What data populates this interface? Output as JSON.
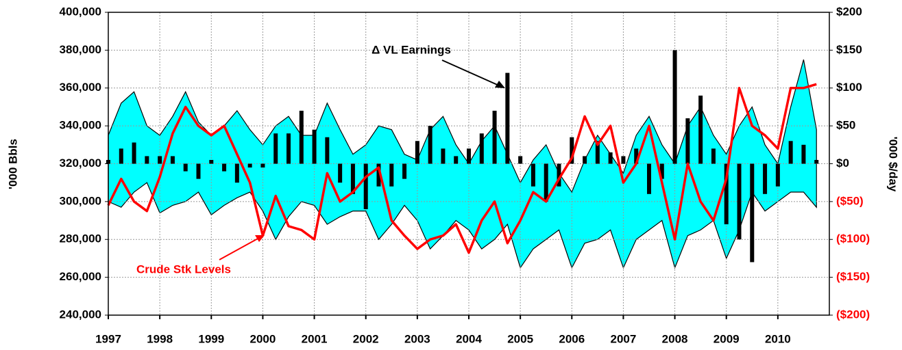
{
  "chart_data": {
    "type": "combo",
    "x": [
      1997,
      1997.25,
      1997.5,
      1997.75,
      1998,
      1998.25,
      1998.5,
      1998.75,
      1999,
      1999.25,
      1999.5,
      1999.75,
      2000,
      2000.25,
      2000.5,
      2000.75,
      2001,
      2001.25,
      2001.5,
      2001.75,
      2002,
      2002.25,
      2002.5,
      2002.75,
      2003,
      2003.25,
      2003.5,
      2003.75,
      2004,
      2004.25,
      2004.5,
      2004.75,
      2005,
      2005.25,
      2005.5,
      2005.75,
      2006,
      2006.25,
      2006.5,
      2006.75,
      2007,
      2007.25,
      2007.5,
      2007.75,
      2008,
      2008.25,
      2008.5,
      2008.75,
      2009,
      2009.25,
      2009.5,
      2009.75,
      2010,
      2010.25,
      2010.5,
      2010.75
    ],
    "band": {
      "color": "#00ffff",
      "upper": [
        335000,
        352000,
        358000,
        340000,
        335000,
        345000,
        358000,
        342000,
        335000,
        340000,
        348000,
        338000,
        330000,
        340000,
        345000,
        335000,
        335000,
        352000,
        338000,
        325000,
        330000,
        340000,
        338000,
        325000,
        322000,
        338000,
        345000,
        330000,
        320000,
        332000,
        340000,
        325000,
        310000,
        322000,
        330000,
        315000,
        305000,
        322000,
        335000,
        325000,
        315000,
        335000,
        345000,
        330000,
        320000,
        340000,
        350000,
        335000,
        325000,
        340000,
        350000,
        330000,
        320000,
        350000,
        375000,
        338000
      ],
      "lower": [
        300000,
        297000,
        305000,
        310000,
        294000,
        298000,
        300000,
        305000,
        293000,
        298000,
        302000,
        305000,
        295000,
        280000,
        292000,
        300000,
        298000,
        288000,
        292000,
        295000,
        295000,
        280000,
        288000,
        298000,
        290000,
        275000,
        282000,
        290000,
        285000,
        275000,
        280000,
        288000,
        265000,
        275000,
        280000,
        285000,
        265000,
        278000,
        280000,
        285000,
        265000,
        280000,
        285000,
        290000,
        265000,
        282000,
        285000,
        290000,
        270000,
        285000,
        305000,
        295000,
        300000,
        305000,
        305000,
        297000
      ]
    },
    "series": [
      {
        "color": "#ff0000",
        "values": [
          298000,
          312000,
          300000,
          295000,
          313000,
          336000,
          350000,
          340000,
          335000,
          340000,
          325000,
          310000,
          282000,
          303000,
          287000,
          285000,
          280000,
          315000,
          300000,
          305000,
          313000,
          318000,
          290000,
          282000,
          275000,
          280000,
          282000,
          288000,
          273000,
          290000,
          300000,
          278000,
          290000,
          305000,
          300000,
          312000,
          323000,
          345000,
          330000,
          340000,
          310000,
          320000,
          340000,
          310000,
          280000,
          320000,
          300000,
          290000,
          312000,
          360000,
          340000,
          335000,
          328000,
          360000,
          360000,
          362000
        ]
      },
      {
        "color": "#000000",
        "axis": "y2",
        "values": [
          5,
          20,
          28,
          10,
          10,
          10,
          -10,
          -20,
          5,
          -10,
          -25,
          -5,
          -5,
          40,
          40,
          70,
          45,
          35,
          -25,
          -40,
          -60,
          -30,
          -30,
          -20,
          30,
          50,
          20,
          10,
          20,
          40,
          70,
          120,
          10,
          -30,
          -50,
          -30,
          35,
          10,
          30,
          15,
          10,
          20,
          -40,
          -20,
          150,
          60,
          90,
          20,
          -80,
          -100,
          -130,
          -40,
          -30,
          30,
          25,
          5
        ]
      }
    ],
    "xlim": [
      1997,
      2011
    ],
    "xticks": [
      1997,
      1998,
      1999,
      2000,
      2001,
      2002,
      2003,
      2004,
      2005,
      2006,
      2007,
      2008,
      2009,
      2010
    ],
    "ylim": [
      240000,
      400000
    ],
    "yticks": [
      {
        "value": 240000,
        "label": "240,000"
      },
      {
        "value": 260000,
        "label": "260,000"
      },
      {
        "value": 280000,
        "label": "280,000"
      },
      {
        "value": 300000,
        "label": "300,000"
      },
      {
        "value": 320000,
        "label": "320,000"
      },
      {
        "value": 340000,
        "label": "340,000"
      },
      {
        "value": 360000,
        "label": "360,000"
      },
      {
        "value": 380000,
        "label": "380,000"
      },
      {
        "value": 400000,
        "label": "400,000"
      }
    ],
    "y2lim": [
      -200,
      200
    ],
    "y2ticks": [
      {
        "value": -200,
        "label": "($200)"
      },
      {
        "value": -150,
        "label": "($150)"
      },
      {
        "value": -100,
        "label": "($100)"
      },
      {
        "value": -50,
        "label": "($50)"
      },
      {
        "value": 0,
        "label": "$0"
      },
      {
        "value": 50,
        "label": "$50"
      },
      {
        "value": 100,
        "label": "$100"
      },
      {
        "value": 150,
        "label": "$150"
      },
      {
        "value": 200,
        "label": "$200"
      }
    ],
    "negative_tick_color": "#ff0000",
    "ylabel": "'000 Bbls",
    "y2label": "'000 $/day",
    "grid": true,
    "annotations": [
      {
        "text": "Δ VL Earnings",
        "color": "#000000"
      },
      {
        "text": "Crude Stk Levels",
        "color": "#ff0000"
      }
    ]
  }
}
